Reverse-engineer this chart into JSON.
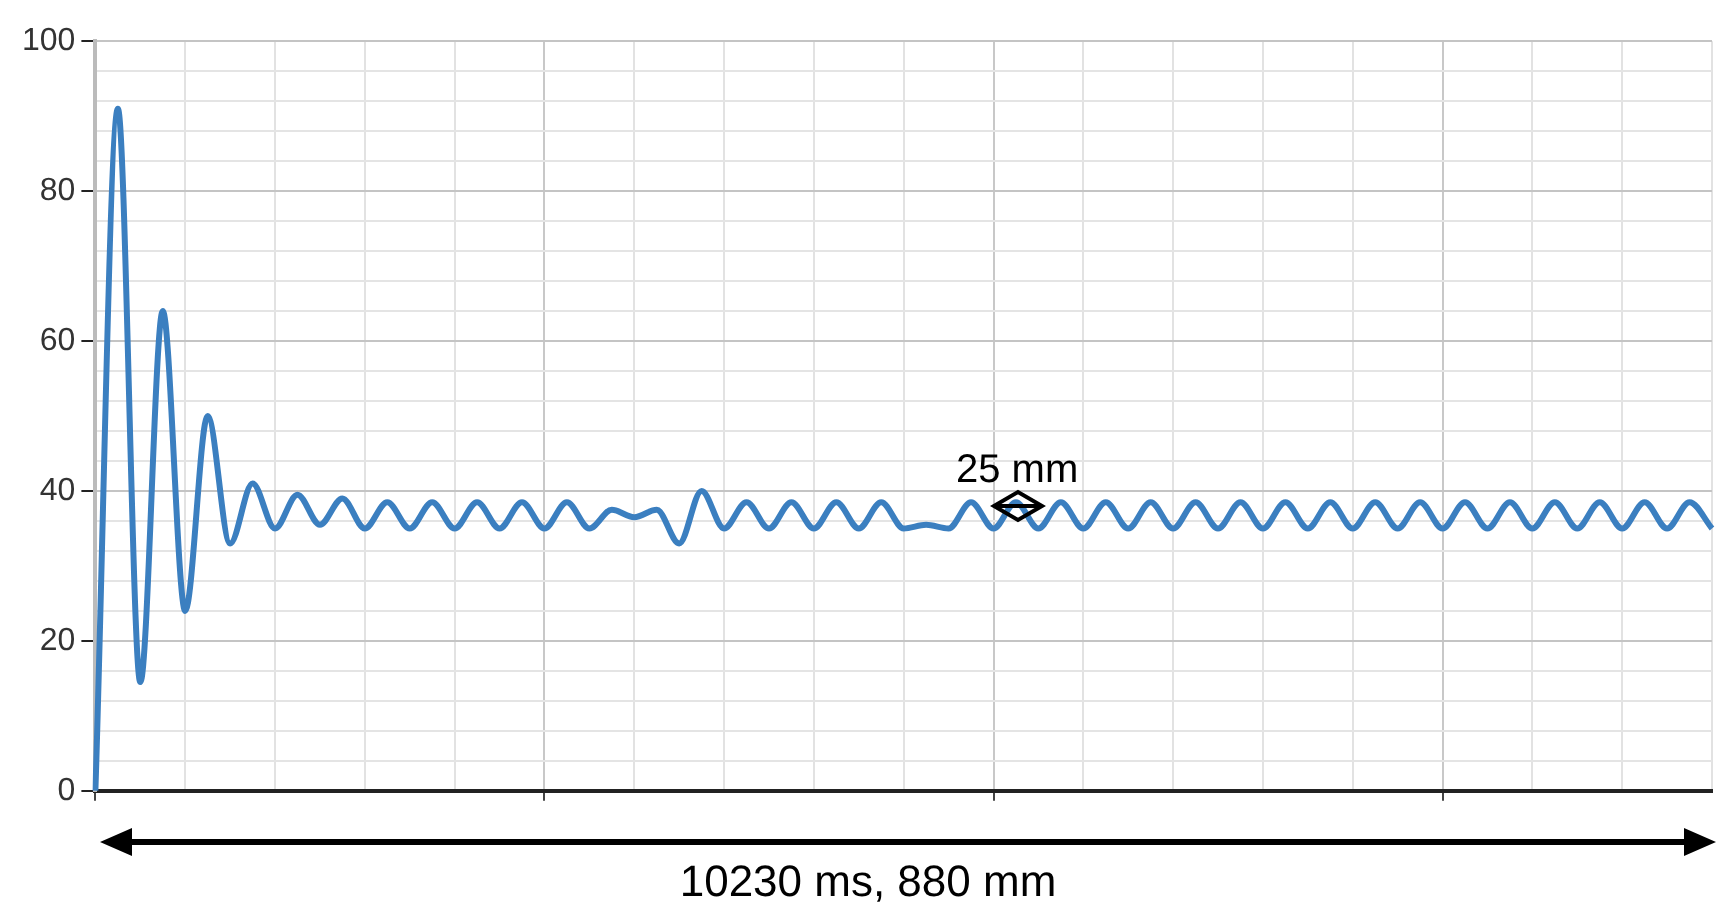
{
  "chart_data": {
    "type": "line",
    "categories": [
      null,
      null,
      null,
      null,
      null,
      null,
      null,
      null,
      null,
      null,
      null,
      null,
      null,
      null,
      null,
      null,
      null,
      null,
      null,
      null,
      null,
      null,
      null,
      null,
      null,
      null,
      null,
      null,
      null,
      null,
      null,
      null,
      null,
      null,
      null,
      null,
      null,
      null,
      null,
      null,
      null,
      null,
      null,
      null,
      null,
      null,
      null,
      null,
      null,
      null,
      null,
      null,
      null,
      null,
      null,
      null,
      null,
      null,
      null,
      null,
      null,
      null,
      null,
      null,
      null,
      null,
      null,
      null,
      null,
      null,
      null,
      null,
      null
    ],
    "series": [
      {
        "color": "#3b7fc0",
        "values": [
          0,
          91,
          14.5,
          64,
          24,
          50,
          33,
          41,
          35,
          39.5,
          35.5,
          39,
          35,
          38.5,
          35,
          38.5,
          35,
          38.5,
          35,
          38.5,
          35,
          38.5,
          35,
          37.5,
          36.5,
          37.5,
          33,
          40,
          35,
          38.5,
          35,
          38.5,
          35,
          38.5,
          35,
          38.5,
          35,
          35.5,
          35,
          38.5,
          35,
          38.5,
          35,
          38.5,
          35,
          38.5,
          35,
          38.5,
          35,
          38.5,
          35,
          38.5,
          35,
          38.5,
          35,
          38.5,
          35,
          38.5,
          35,
          38.5,
          35,
          38.5,
          35,
          38.5,
          35,
          38.5,
          35,
          38.5,
          35,
          38.5,
          35,
          38.5,
          35
        ]
      }
    ],
    "ylim": [
      0,
      100
    ],
    "yticks": [
      0,
      {
        "value": 4,
        "label": null
      },
      {
        "value": 8,
        "label": null
      },
      {
        "value": 12,
        "label": null
      },
      {
        "value": 16,
        "label": null
      },
      20,
      {
        "value": 24,
        "label": null
      },
      {
        "value": 28,
        "label": null
      },
      {
        "value": 32,
        "label": null
      },
      {
        "value": 36,
        "label": null
      },
      40,
      {
        "value": 44,
        "label": null
      },
      {
        "value": 48,
        "label": null
      },
      {
        "value": 52,
        "label": null
      },
      {
        "value": 56,
        "label": null
      },
      60,
      {
        "value": 64,
        "label": null
      },
      {
        "value": 68,
        "label": null
      },
      {
        "value": 72,
        "label": null
      },
      {
        "value": 76,
        "label": null
      },
      80,
      {
        "value": 84,
        "label": null
      },
      {
        "value": 88,
        "label": null
      },
      {
        "value": 92,
        "label": null
      },
      {
        "value": 96,
        "label": null
      },
      100
    ],
    "grid": true,
    "tick_labels": "y",
    "marker": "none",
    "line_style": "solid",
    "legend": false,
    "annotations": [
      "25 mm",
      "10230 ms, 880 mm"
    ]
  }
}
